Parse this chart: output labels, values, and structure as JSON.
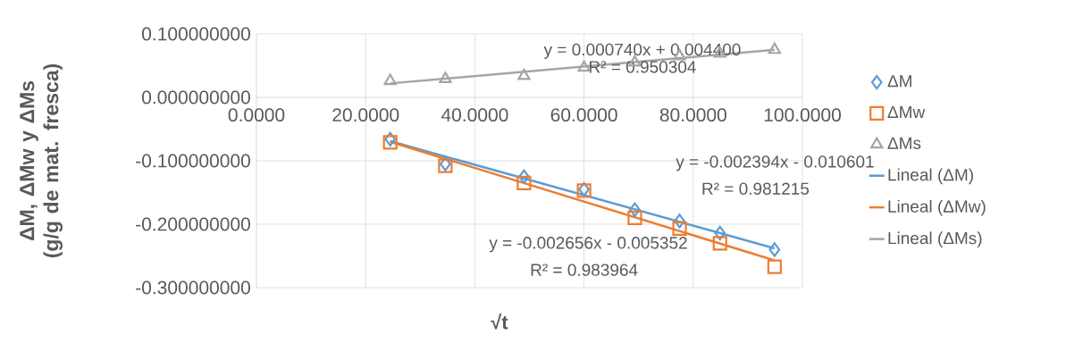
{
  "chart_data": {
    "type": "scatter",
    "xlabel": "√t",
    "ylabel": "ΔM, ΔMw y ΔMs (g/g de mat. fresca)",
    "series": [
      {
        "name": "ΔM",
        "marker": "diamond",
        "color": "#5b9bd5",
        "x": [
          24.5,
          34.6,
          49.0,
          60.0,
          69.3,
          77.5,
          84.9,
          94.9
        ],
        "values": [
          -0.066,
          -0.105,
          -0.125,
          -0.145,
          -0.177,
          -0.195,
          -0.214,
          -0.24
        ]
      },
      {
        "name": "ΔMw",
        "marker": "square",
        "color": "#ed7d31",
        "x": [
          24.5,
          34.6,
          49.0,
          60.0,
          69.3,
          77.5,
          84.9,
          94.9
        ],
        "values": [
          -0.071,
          -0.108,
          -0.135,
          -0.147,
          -0.19,
          -0.207,
          -0.23,
          -0.267
        ]
      },
      {
        "name": "ΔMs",
        "marker": "triangle",
        "color": "#a5a5a5",
        "x": [
          24.5,
          34.6,
          49.0,
          60.0,
          69.3,
          77.5,
          84.9,
          94.9
        ],
        "values": [
          0.026,
          0.029,
          0.034,
          0.047,
          0.055,
          0.065,
          0.069,
          0.075
        ]
      },
      {
        "name": "Lineal (ΔM)",
        "type": "line",
        "color": "#5b9bd5",
        "x": [
          24.5,
          94.9
        ],
        "values": [
          -0.069,
          -0.238
        ]
      },
      {
        "name": "Lineal (ΔMw)",
        "type": "line",
        "color": "#ed7d31",
        "x": [
          24.5,
          94.9
        ],
        "values": [
          -0.07,
          -0.257
        ]
      },
      {
        "name": "Lineal (ΔMs)",
        "type": "line",
        "color": "#a5a5a5",
        "x": [
          24.5,
          94.9
        ],
        "values": [
          0.022,
          0.075
        ]
      }
    ],
    "xlim": [
      0,
      100
    ],
    "ylim": [
      -0.3,
      0.1
    ],
    "xticks": [
      {
        "value": 0,
        "label": "0.0000"
      },
      {
        "value": 20,
        "label": "20.0000"
      },
      {
        "value": 40,
        "label": "40.0000"
      },
      {
        "value": 60,
        "label": "60.0000"
      },
      {
        "value": 80,
        "label": "80.0000"
      },
      {
        "value": 100,
        "label": "100.0000"
      }
    ],
    "yticks": [
      {
        "value": -0.3,
        "label": "-0.300000000"
      },
      {
        "value": -0.2,
        "label": "-0.200000000"
      },
      {
        "value": -0.1,
        "label": "-0.100000000"
      },
      {
        "value": 0,
        "label": "0.000000000"
      },
      {
        "value": 0.1,
        "label": "0.100000000"
      }
    ],
    "grid": true,
    "legend": "right",
    "annotations": [
      "y = 0.000740x + 0.004400",
      "R² = 0.950304",
      "y = -0.002394x - 0.010601",
      "R² = 0.981215",
      "y = -0.002656x - 0.005352",
      "R² = 0.983964"
    ]
  }
}
